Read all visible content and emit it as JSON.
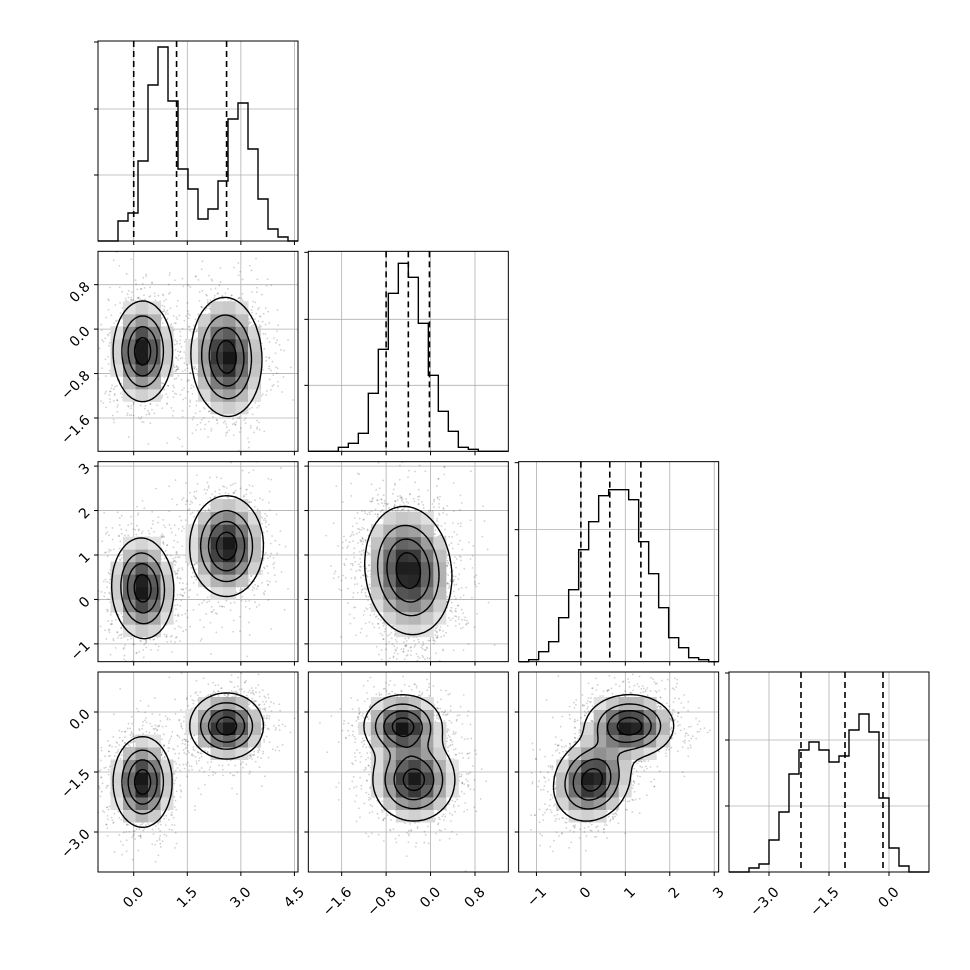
{
  "chart_data": {
    "type": "corner",
    "parameters": [
      {
        "range": [
          -1.0,
          4.6
        ],
        "ticks": [
          0.0,
          1.5,
          3.0,
          4.5
        ],
        "tick_labels": [
          "0.0",
          "1.5",
          "3.0",
          "4.5"
        ],
        "quantiles": [
          0.0,
          1.2,
          2.6
        ],
        "hist_edges_start": -1.0,
        "hist_edge_step": 0.28,
        "hist_values": [
          0.0,
          0.0,
          0.1,
          0.14,
          0.4,
          0.78,
          0.97,
          0.7,
          0.36,
          0.26,
          0.11,
          0.16,
          0.3,
          0.61,
          0.69,
          0.46,
          0.21,
          0.06,
          0.02,
          0.0
        ],
        "hist_ylim": [
          0,
          1.0
        ]
      },
      {
        "range": [
          -2.2,
          1.4
        ],
        "ticks": [
          -1.6,
          -0.8,
          0.0,
          0.8
        ],
        "tick_labels": [
          "−1.6",
          "−0.8",
          "0.0",
          "0.8"
        ],
        "quantiles": [
          -0.8,
          -0.4,
          -0.02
        ],
        "hist_edges_start": -2.2,
        "hist_edge_step": 0.18,
        "hist_values": [
          0.0,
          0.0,
          0.0,
          0.02,
          0.04,
          0.09,
          0.29,
          0.51,
          0.79,
          0.94,
          0.87,
          0.64,
          0.38,
          0.2,
          0.1,
          0.02,
          0.01,
          0.0,
          0.0,
          0.0
        ],
        "hist_ylim": [
          0,
          1.0
        ]
      },
      {
        "range": [
          -1.4,
          3.1
        ],
        "ticks": [
          -1,
          0,
          1,
          2,
          3
        ],
        "tick_labels": [
          "−1",
          "0",
          "1",
          "2",
          "3"
        ],
        "quantiles": [
          0.0,
          0.65,
          1.35
        ],
        "hist_edges_start": -1.4,
        "hist_edge_step": 0.225,
        "hist_values": [
          0.0,
          0.01,
          0.05,
          0.1,
          0.22,
          0.36,
          0.56,
          0.7,
          0.83,
          0.86,
          0.86,
          0.81,
          0.6,
          0.44,
          0.27,
          0.12,
          0.07,
          0.02,
          0.01,
          0.0
        ],
        "hist_ylim": [
          0,
          1.0
        ]
      },
      {
        "range": [
          -4.0,
          1.0
        ],
        "ticks": [
          -3.0,
          -1.5,
          0.0
        ],
        "tick_labels": [
          "−3.0",
          "−1.5",
          "0.0"
        ],
        "quantiles": [
          -2.2,
          -1.1,
          -0.15
        ],
        "hist_edges_start": -4.0,
        "hist_edge_step": 0.25,
        "hist_values": [
          0.0,
          0.0,
          0.02,
          0.04,
          0.16,
          0.3,
          0.49,
          0.61,
          0.65,
          0.61,
          0.55,
          0.58,
          0.71,
          0.79,
          0.7,
          0.37,
          0.12,
          0.03,
          0.0,
          0.0
        ],
        "hist_ylim": [
          0,
          1.0
        ]
      }
    ],
    "pairs": [
      {
        "x": 0,
        "y": 1,
        "modes": [
          {
            "mx": 0.25,
            "my": -0.4,
            "sx": 0.4,
            "sy": 0.44,
            "rho": 0.0,
            "w": 0.5
          },
          {
            "mx": 2.6,
            "my": -0.5,
            "sx": 0.48,
            "sy": 0.52,
            "rho": -0.05,
            "w": 0.5
          }
        ]
      },
      {
        "x": 0,
        "y": 2,
        "modes": [
          {
            "mx": 0.25,
            "my": 0.25,
            "sx": 0.42,
            "sy": 0.55,
            "rho": -0.05,
            "w": 0.5
          },
          {
            "mx": 2.6,
            "my": 1.2,
            "sx": 0.5,
            "sy": 0.55,
            "rho": 0.0,
            "w": 0.5
          }
        ]
      },
      {
        "x": 1,
        "y": 2,
        "modes": [
          {
            "mx": -0.4,
            "my": 0.65,
            "sx": 0.38,
            "sy": 0.7,
            "rho": -0.1,
            "w": 1.0
          }
        ]
      },
      {
        "x": 0,
        "y": 3,
        "modes": [
          {
            "mx": 0.25,
            "my": -1.75,
            "sx": 0.4,
            "sy": 0.55,
            "rho": 0.0,
            "w": 0.5
          },
          {
            "mx": 2.6,
            "my": -0.35,
            "sx": 0.5,
            "sy": 0.4,
            "rho": 0.0,
            "w": 0.5
          }
        ]
      },
      {
        "x": 1,
        "y": 3,
        "modes": [
          {
            "mx": -0.5,
            "my": -0.35,
            "sx": 0.34,
            "sy": 0.38,
            "rho": 0.0,
            "w": 0.5
          },
          {
            "mx": -0.3,
            "my": -1.7,
            "sx": 0.36,
            "sy": 0.5,
            "rho": 0.0,
            "w": 0.5
          }
        ]
      },
      {
        "x": 2,
        "y": 3,
        "modes": [
          {
            "mx": 0.25,
            "my": -1.7,
            "sx": 0.42,
            "sy": 0.5,
            "rho": 0.15,
            "w": 0.5
          },
          {
            "mx": 1.1,
            "my": -0.35,
            "sx": 0.48,
            "sy": 0.38,
            "rho": 0.0,
            "w": 0.5
          }
        ]
      }
    ],
    "contour_levels": [
      0.12,
      0.35,
      0.6,
      0.85
    ],
    "grid": true
  }
}
